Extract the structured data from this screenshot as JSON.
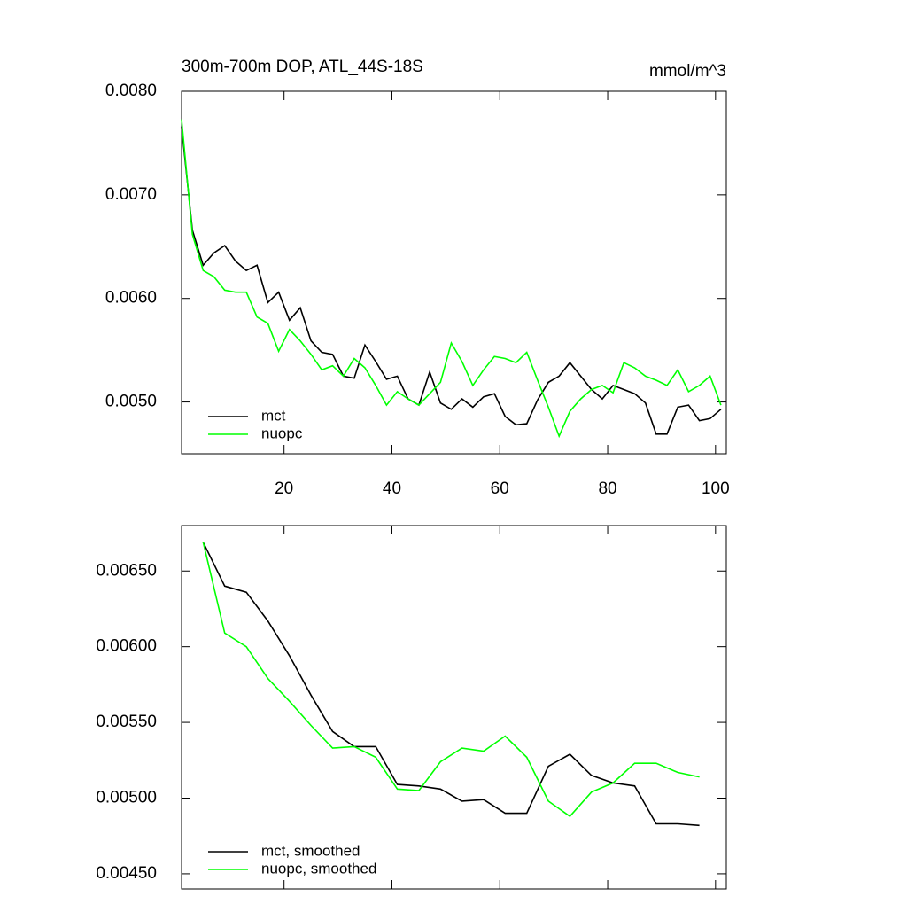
{
  "chart_data": [
    {
      "type": "line",
      "title": "300m-700m DOP, ATL_44S-18S",
      "units": "mmol/m^3",
      "x": [
        1,
        3,
        5,
        7,
        9,
        11,
        13,
        15,
        17,
        19,
        21,
        23,
        25,
        27,
        29,
        31,
        33,
        35,
        37,
        39,
        41,
        43,
        45,
        47,
        49,
        51,
        53,
        55,
        57,
        59,
        61,
        63,
        65,
        67,
        69,
        71,
        73,
        75,
        77,
        79,
        81,
        83,
        85,
        87,
        89,
        91,
        93,
        95,
        97,
        99,
        101
      ],
      "series": [
        {
          "name": "mct",
          "color": "#000000",
          "values": [
            0.00766,
            0.00666,
            0.00632,
            0.00644,
            0.00651,
            0.00636,
            0.00627,
            0.00632,
            0.00596,
            0.00606,
            0.00579,
            0.00591,
            0.00559,
            0.00548,
            0.00546,
            0.00525,
            0.00523,
            0.00555,
            0.00539,
            0.00522,
            0.00525,
            0.00503,
            0.00497,
            0.00529,
            0.00499,
            0.00493,
            0.00503,
            0.00495,
            0.00505,
            0.00508,
            0.00486,
            0.00478,
            0.00479,
            0.00502,
            0.00519,
            0.00525,
            0.00538,
            0.00525,
            0.00512,
            0.00503,
            0.00516,
            0.00512,
            0.00508,
            0.00499,
            0.00469,
            0.00469,
            0.00495,
            0.00497,
            0.00482,
            0.00484,
            0.00493
          ]
        },
        {
          "name": "nuopc",
          "color": "#00ff00",
          "values": [
            0.00773,
            0.00662,
            0.00627,
            0.00621,
            0.00608,
            0.00606,
            0.00606,
            0.00582,
            0.00576,
            0.00549,
            0.0057,
            0.00559,
            0.00546,
            0.00531,
            0.00535,
            0.00525,
            0.00542,
            0.00533,
            0.00516,
            0.00497,
            0.0051,
            0.00503,
            0.00497,
            0.00508,
            0.00519,
            0.00557,
            0.00539,
            0.00516,
            0.00531,
            0.00544,
            0.00542,
            0.00538,
            0.00548,
            0.00521,
            0.00495,
            0.00467,
            0.00491,
            0.00503,
            0.00512,
            0.00516,
            0.00509,
            0.00538,
            0.00533,
            0.00525,
            0.00521,
            0.00516,
            0.00531,
            0.0051,
            0.00516,
            0.00525,
            0.00497
          ]
        }
      ],
      "xlim": [
        1,
        102
      ],
      "xticks": [
        20,
        40,
        60,
        80,
        100
      ],
      "show_xtick_labels": true,
      "ylim": [
        0.0045,
        0.008
      ],
      "yticks": [
        {
          "value": 0.005,
          "label": "0.0050"
        },
        {
          "value": 0.006,
          "label": "0.0060"
        },
        {
          "value": 0.007,
          "label": "0.0070"
        },
        {
          "value": 0.008,
          "label": "0.0080"
        }
      ],
      "legend": "lower left"
    },
    {
      "type": "line",
      "x": [
        5,
        9,
        13,
        17,
        21,
        25,
        29,
        33,
        37,
        41,
        45,
        49,
        53,
        57,
        61,
        65,
        69,
        73,
        77,
        81,
        85,
        89,
        93,
        97
      ],
      "series": [
        {
          "name": "mct, smoothed",
          "color": "#000000",
          "values": [
            0.00669,
            0.0064,
            0.00636,
            0.00617,
            0.00594,
            0.00568,
            0.00544,
            0.00534,
            0.00534,
            0.00509,
            0.00508,
            0.00506,
            0.00498,
            0.00499,
            0.0049,
            0.0049,
            0.00521,
            0.00529,
            0.00515,
            0.0051,
            0.00508,
            0.00483,
            0.00483,
            0.00482
          ]
        },
        {
          "name": "nuopc, smoothed",
          "color": "#00ff00",
          "values": [
            0.00669,
            0.00609,
            0.006,
            0.00579,
            0.00564,
            0.00548,
            0.00533,
            0.00534,
            0.00527,
            0.00506,
            0.00505,
            0.00524,
            0.00533,
            0.00531,
            0.00541,
            0.00527,
            0.00498,
            0.00488,
            0.00504,
            0.0051,
            0.00523,
            0.00523,
            0.00517,
            0.00514
          ]
        }
      ],
      "xlim": [
        1,
        102
      ],
      "xticks": [
        20,
        40,
        60,
        80,
        100
      ],
      "show_xtick_labels": false,
      "ylim": [
        0.0044,
        0.0068
      ],
      "yticks": [
        {
          "value": 0.0045,
          "label": "0.00450"
        },
        {
          "value": 0.005,
          "label": "0.00500"
        },
        {
          "value": 0.0055,
          "label": "0.00550"
        },
        {
          "value": 0.006,
          "label": "0.00600"
        },
        {
          "value": 0.0065,
          "label": "0.00650"
        }
      ],
      "legend": "lower left"
    }
  ]
}
